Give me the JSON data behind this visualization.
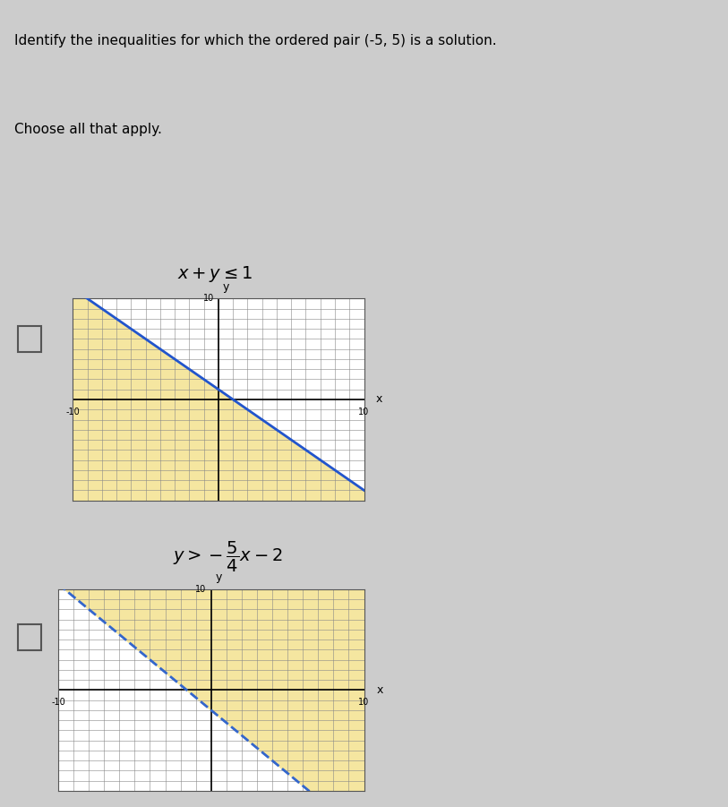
{
  "title": "Identify the inequalities for which the ordered pair (-5, 5) is a solution.",
  "subtitle": "Choose all that apply.",
  "bg_color": "#e8e8e8",
  "panel_bg": "#f0f0f0",
  "grid_color": "#888888",
  "shade_color": "#f5e6a0",
  "line1_color": "#2255cc",
  "line2_color": "#3366cc",
  "ineq1_label": "x + y ≤ 1",
  "ineq2_label_line1": "5",
  "ineq2_label_line2": "y > − ―x − 2",
  "ineq2_label_full": "y > −$\\frac{5}{4}$x − 2",
  "xlim": [
    -10,
    10
  ],
  "ylim": [
    -10,
    10
  ],
  "tick_vals": [
    -10,
    10
  ],
  "graph1_slope": -1,
  "graph1_intercept": 1,
  "graph2_slope": -1.25,
  "graph2_intercept": -2
}
